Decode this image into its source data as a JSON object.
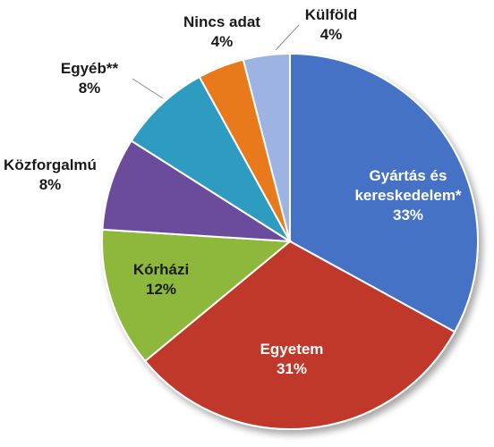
{
  "chart_data": {
    "type": "pie",
    "title": "",
    "slices": [
      {
        "name": "Gyártás és kereskedelem*",
        "lines": [
          "Gyártás és",
          "kereskedelem*"
        ],
        "value": 33,
        "pct_label": "33%",
        "color": "#4472C4",
        "text_color": "#ffffff"
      },
      {
        "name": "Egyetem",
        "lines": [
          "Egyetem"
        ],
        "value": 31,
        "pct_label": "31%",
        "color": "#C0392B",
        "text_color": "#ffffff"
      },
      {
        "name": "Kórházi",
        "lines": [
          "Kórházi"
        ],
        "value": 12,
        "pct_label": "12%",
        "color": "#8DB83A",
        "text_color": "#1a1a1a"
      },
      {
        "name": "Közforgalmú",
        "lines": [
          "Közforgalmú"
        ],
        "value": 8,
        "pct_label": "8%",
        "color": "#6A4C9C",
        "text_color": "#1a1a1a"
      },
      {
        "name": "Egyéb**",
        "lines": [
          "Egyéb**"
        ],
        "value": 8,
        "pct_label": "8%",
        "color": "#2E9CC0",
        "text_color": "#1a1a1a"
      },
      {
        "name": "Nincs adat",
        "lines": [
          "Nincs adat"
        ],
        "value": 4,
        "pct_label": "4%",
        "color": "#E97A1E",
        "text_color": "#1a1a1a"
      },
      {
        "name": "Külföld",
        "lines": [
          "Külföld"
        ],
        "value": 4,
        "pct_label": "4%",
        "color": "#9DB3E2",
        "text_color": "#1a1a1a"
      }
    ]
  }
}
